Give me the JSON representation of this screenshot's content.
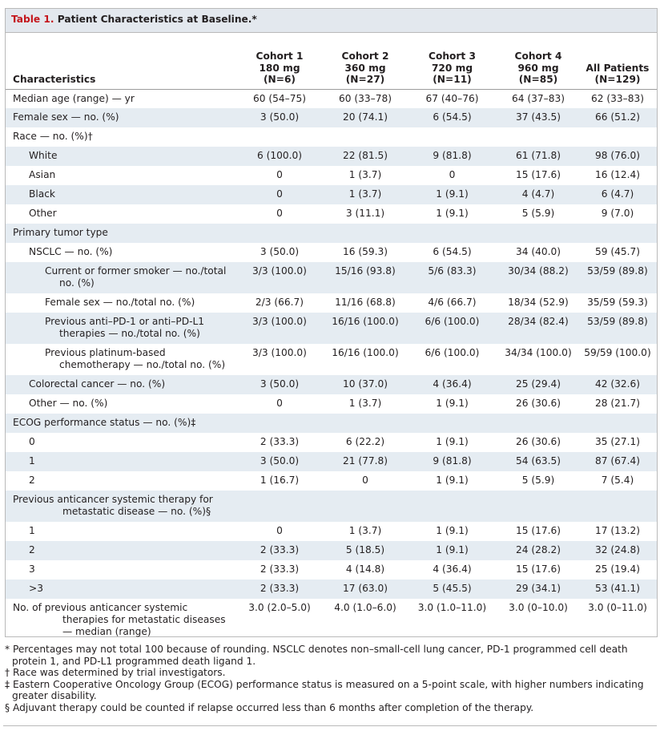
{
  "title": {
    "label": "Table 1.",
    "text": "Patient Characteristics at Baseline.*"
  },
  "header": {
    "characteristics": "Characteristics",
    "columns": [
      {
        "name": "Cohort 1",
        "dose": "180 mg",
        "n": "(N=6)"
      },
      {
        "name": "Cohort 2",
        "dose": "360 mg",
        "n": "(N=27)"
      },
      {
        "name": "Cohort 3",
        "dose": "720 mg",
        "n": "(N=11)"
      },
      {
        "name": "Cohort 4",
        "dose": "960 mg",
        "n": "(N=85)"
      },
      {
        "name": "",
        "dose": "All Patients",
        "n": "(N=129)"
      }
    ]
  },
  "rows": [
    {
      "label": "Median age (range) — yr",
      "values": [
        "60 (54–75)",
        "60 (33–78)",
        "67 (40–76)",
        "64 (37–83)",
        "62 (33–83)"
      ]
    },
    {
      "label": "Female sex — no. (%)",
      "values": [
        "3 (50.0)",
        "20 (74.1)",
        "6 (54.5)",
        "37 (43.5)",
        "66 (51.2)"
      ]
    },
    {
      "label": "Race — no. (%)†",
      "values": [
        "",
        "",
        "",
        "",
        ""
      ]
    },
    {
      "label": "White",
      "values": [
        "6 (100.0)",
        "22 (81.5)",
        "9 (81.8)",
        "61 (71.8)",
        "98 (76.0)"
      ]
    },
    {
      "label": "Asian",
      "values": [
        "0",
        "1 (3.7)",
        "0",
        "15 (17.6)",
        "16 (12.4)"
      ]
    },
    {
      "label": "Black",
      "values": [
        "0",
        "1 (3.7)",
        "1 (9.1)",
        "4 (4.7)",
        "6 (4.7)"
      ]
    },
    {
      "label": "Other",
      "values": [
        "0",
        "3 (11.1)",
        "1 (9.1)",
        "5 (5.9)",
        "9 (7.0)"
      ]
    },
    {
      "label": "Primary tumor type",
      "values": [
        "",
        "",
        "",
        "",
        ""
      ]
    },
    {
      "label": "NSCLC — no. (%)",
      "values": [
        "3 (50.0)",
        "16 (59.3)",
        "6 (54.5)",
        "34 (40.0)",
        "59 (45.7)"
      ]
    },
    {
      "label": "Current or former smoker — no./total no. (%)",
      "values": [
        "3/3 (100.0)",
        "15/16 (93.8)",
        "5/6 (83.3)",
        "30/34 (88.2)",
        "53/59 (89.8)"
      ]
    },
    {
      "label": "Female sex — no./total no. (%)",
      "values": [
        "2/3 (66.7)",
        "11/16 (68.8)",
        "4/6 (66.7)",
        "18/34 (52.9)",
        "35/59 (59.3)"
      ]
    },
    {
      "label": "Previous anti–PD-1 or anti–PD-L1 therapies — no./total no. (%)",
      "values": [
        "3/3 (100.0)",
        "16/16 (100.0)",
        "6/6 (100.0)",
        "28/34 (82.4)",
        "53/59 (89.8)"
      ]
    },
    {
      "label": "Previous platinum-based chemotherapy — no./total no. (%)",
      "values": [
        "3/3 (100.0)",
        "16/16 (100.0)",
        "6/6 (100.0)",
        "34/34 (100.0)",
        "59/59 (100.0)"
      ]
    },
    {
      "label": "Colorectal cancer — no. (%)",
      "values": [
        "3 (50.0)",
        "10 (37.0)",
        "4 (36.4)",
        "25 (29.4)",
        "42 (32.6)"
      ]
    },
    {
      "label": "Other — no. (%)",
      "values": [
        "0",
        "1 (3.7)",
        "1 (9.1)",
        "26 (30.6)",
        "28 (21.7)"
      ]
    },
    {
      "label": "ECOG performance status — no. (%)‡",
      "values": [
        "",
        "",
        "",
        "",
        ""
      ]
    },
    {
      "label": "0",
      "values": [
        "2 (33.3)",
        "6 (22.2)",
        "1 (9.1)",
        "26 (30.6)",
        "35 (27.1)"
      ]
    },
    {
      "label": "1",
      "values": [
        "3 (50.0)",
        "21 (77.8)",
        "9 (81.8)",
        "54 (63.5)",
        "87 (67.4)"
      ]
    },
    {
      "label": "2",
      "values": [
        "1 (16.7)",
        "0",
        "1 (9.1)",
        "5 (5.9)",
        "7 (5.4)"
      ]
    },
    {
      "label": "Previous anticancer systemic therapy for metastatic disease — no. (%)§",
      "values": [
        "",
        "",
        "",
        "",
        ""
      ]
    },
    {
      "label": "1",
      "values": [
        "0",
        "1 (3.7)",
        "1 (9.1)",
        "15 (17.6)",
        "17 (13.2)"
      ]
    },
    {
      "label": "2",
      "values": [
        "2 (33.3)",
        "5 (18.5)",
        "1 (9.1)",
        "24 (28.2)",
        "32 (24.8)"
      ]
    },
    {
      "label": "3",
      "values": [
        "2 (33.3)",
        "4 (14.8)",
        "4 (36.4)",
        "15 (17.6)",
        "25 (19.4)"
      ]
    },
    {
      "label": ">3",
      "values": [
        "2 (33.3)",
        "17 (63.0)",
        "5 (45.5)",
        "29 (34.1)",
        "53 (41.1)"
      ]
    },
    {
      "label": "No. of previous anticancer systemic therapies for metastatic diseases — median (range)",
      "values": [
        "3.0 (2.0–5.0)",
        "4.0 (1.0–6.0)",
        "3.0 (1.0–11.0)",
        "3.0 (0–10.0)",
        "3.0 (0–11.0)"
      ]
    }
  ],
  "footnotes": [
    "* Percentages may not total 100 because of rounding. NSCLC denotes non–small-cell lung cancer, PD-1 programmed cell death protein 1, and PD-L1 programmed death ligand 1.",
    "† Race was determined by trial investigators.",
    "‡ Eastern Cooperative Oncology Group (ECOG) performance status is measured on a 5-point scale, with higher numbers indicating greater disability.",
    "§ Adjuvant therapy could be counted if relapse occurred less than 6 months after completion of the therapy."
  ]
}
